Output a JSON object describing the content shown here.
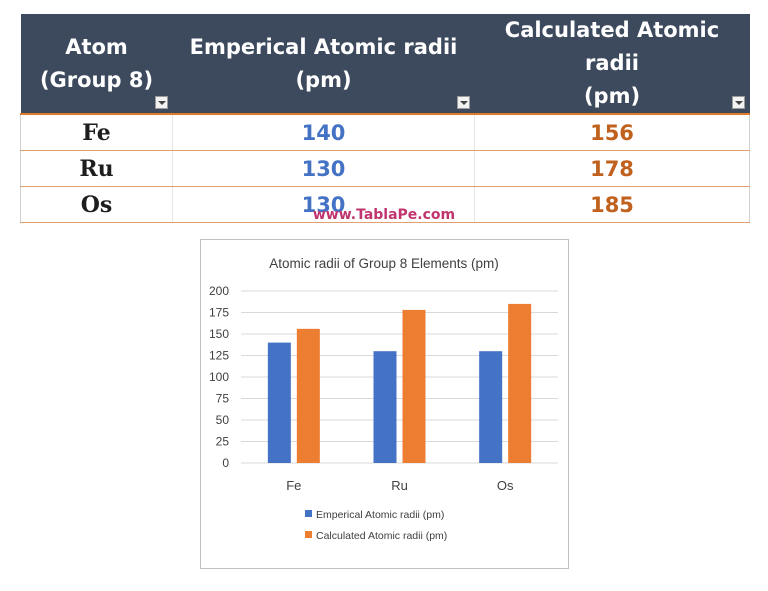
{
  "table": {
    "headers": [
      {
        "line1": "Atom",
        "line2": "(Group 8)"
      },
      {
        "line1": "Emperical Atomic radii",
        "line2": "(pm)"
      },
      {
        "line1": "Calculated Atomic radii",
        "line2": "(pm)"
      }
    ],
    "rows": [
      {
        "atom": "Fe",
        "empirical": "140",
        "calculated": "156"
      },
      {
        "atom": "Ru",
        "empirical": "130",
        "calculated": "178"
      },
      {
        "atom": "Os",
        "empirical": "130",
        "calculated": "185"
      }
    ]
  },
  "watermark": "www.TablaPe.com",
  "colors": {
    "header_bg": "#3d4a5e",
    "empirical": "#4472c4",
    "calculated": "#ed7d31",
    "calculated_text": "#c0611d",
    "watermark": "#c0356d"
  },
  "chart_data": {
    "type": "bar",
    "title": "Atomic radii of Group 8 Elements (pm)",
    "categories": [
      "Fe",
      "Ru",
      "Os"
    ],
    "series": [
      {
        "name": "Emperical Atomic radii (pm)",
        "values": [
          140,
          130,
          130
        ],
        "color": "#4472c4"
      },
      {
        "name": "Calculated Atomic radii (pm)",
        "values": [
          156,
          178,
          185
        ],
        "color": "#ed7d31"
      }
    ],
    "ylim": [
      0,
      200
    ],
    "yticks": [
      0,
      25,
      50,
      75,
      100,
      125,
      150,
      175,
      200
    ],
    "grid": true,
    "legend": "bottom"
  }
}
